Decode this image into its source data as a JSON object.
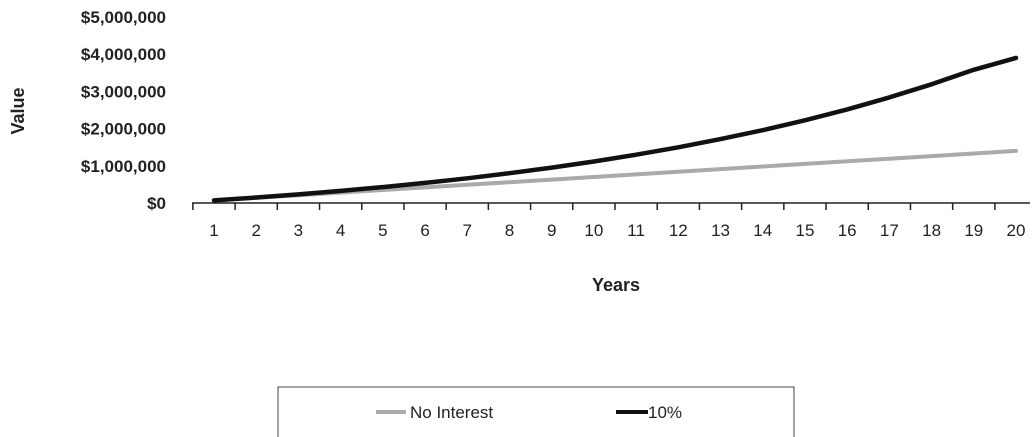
{
  "chart_data": {
    "type": "line",
    "xlabel": "Years",
    "ylabel": "Value",
    "x": [
      1,
      2,
      3,
      4,
      5,
      6,
      7,
      8,
      9,
      10,
      11,
      12,
      13,
      14,
      15,
      16,
      17,
      18,
      19,
      20
    ],
    "x_tick_labels": [
      "1",
      "2",
      "3",
      "4",
      "5",
      "6",
      "7",
      "8",
      "9",
      "10",
      "11",
      "12",
      "13",
      "14",
      "15",
      "16",
      "17",
      "18",
      "19",
      "20"
    ],
    "ylim": [
      0,
      5000000
    ],
    "y_ticks": [
      0,
      1000000,
      2000000,
      3000000,
      4000000,
      5000000
    ],
    "y_tick_labels": [
      "$0",
      "$1,000,000",
      "$2,000,000",
      "$3,000,000",
      "$4,000,000",
      "$5,000,000"
    ],
    "grid": false,
    "legend_position": "bottom",
    "series": [
      {
        "name": "No Interest",
        "color": "#aaaaaa",
        "values": [
          70000,
          140000,
          210000,
          280000,
          350000,
          420000,
          490000,
          560000,
          630000,
          700000,
          770000,
          840000,
          910000,
          980000,
          1050000,
          1120000,
          1190000,
          1260000,
          1330000,
          1400000
        ]
      },
      {
        "name": "10%",
        "color": "#111111",
        "values": [
          70000,
          147000,
          231700,
          324870,
          427360,
          540090,
          664100,
          800510,
          950560,
          1115620,
          1297180,
          1496900,
          1716590,
          1958250,
          2224070,
          2516480,
          2838130,
          3191940,
          3581130,
          3900000
        ]
      }
    ]
  }
}
